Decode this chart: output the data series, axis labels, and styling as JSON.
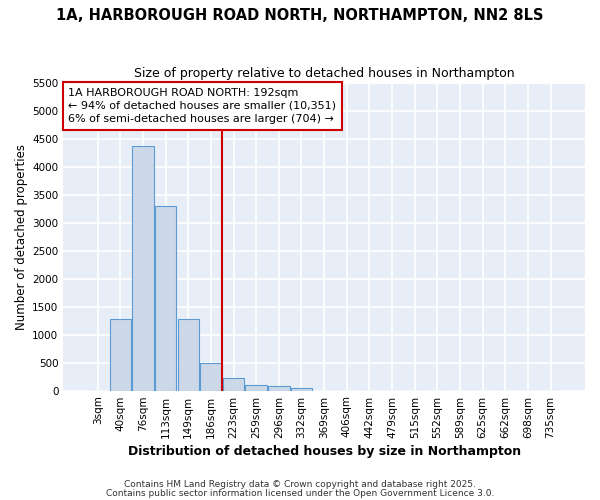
{
  "title": "1A, HARBOROUGH ROAD NORTH, NORTHAMPTON, NN2 8LS",
  "subtitle": "Size of property relative to detached houses in Northampton",
  "xlabel": "Distribution of detached houses by size in Northampton",
  "ylabel": "Number of detached properties",
  "categories": [
    "3sqm",
    "40sqm",
    "76sqm",
    "113sqm",
    "149sqm",
    "186sqm",
    "223sqm",
    "259sqm",
    "296sqm",
    "332sqm",
    "369sqm",
    "406sqm",
    "442sqm",
    "479sqm",
    "515sqm",
    "552sqm",
    "589sqm",
    "625sqm",
    "662sqm",
    "698sqm",
    "735sqm"
  ],
  "values": [
    0,
    1280,
    4380,
    3300,
    1280,
    500,
    230,
    100,
    75,
    50,
    0,
    0,
    0,
    0,
    0,
    0,
    0,
    0,
    0,
    0,
    0
  ],
  "bar_color": "#ccd8e8",
  "bar_edge_color": "#5b9bd5",
  "red_line_index": 5,
  "annotation_line1": "1A HARBOROUGH ROAD NORTH: 192sqm",
  "annotation_line2": "← 94% of detached houses are smaller (10,351)",
  "annotation_line3": "6% of semi-detached houses are larger (704) →",
  "annotation_box_color": "#ffffff",
  "annotation_box_edge_color": "#cc0000",
  "red_line_color": "#cc0000",
  "ylim": [
    0,
    5500
  ],
  "yticks": [
    0,
    500,
    1000,
    1500,
    2000,
    2500,
    3000,
    3500,
    4000,
    4500,
    5000,
    5500
  ],
  "background_color": "#e8eef8",
  "plot_bg_color": "#e8eef8",
  "fig_bg_color": "#ffffff",
  "grid_color": "#ffffff",
  "footer_line1": "Contains HM Land Registry data © Crown copyright and database right 2025.",
  "footer_line2": "Contains public sector information licensed under the Open Government Licence 3.0.",
  "title_fontsize": 10.5,
  "subtitle_fontsize": 9,
  "tick_fontsize": 7.5,
  "ylabel_fontsize": 8.5,
  "xlabel_fontsize": 9,
  "annotation_fontsize": 8
}
